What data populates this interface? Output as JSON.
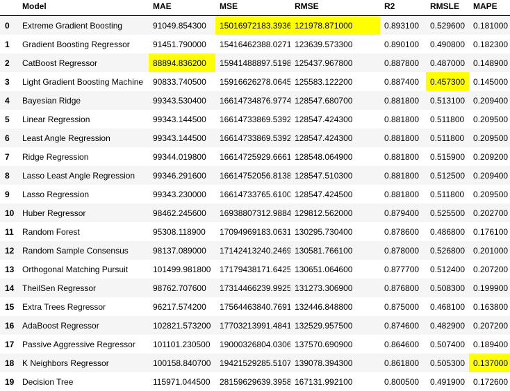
{
  "headers": [
    "",
    "Model",
    "MAE",
    "MSE",
    "RMSE",
    "R2",
    "RMSLE",
    "MAPE"
  ],
  "highlight_color": "#ffff00",
  "rows": [
    {
      "index": "0",
      "cells": [
        "Extreme Gradient Boosting",
        "91049.854300",
        "15016972183.393600",
        "121978.871000",
        "0.893100",
        "0.529600",
        "0.181000"
      ],
      "highlight": [
        2,
        3
      ]
    },
    {
      "index": "1",
      "cells": [
        "Gradient Boosting Regressor",
        "91451.790000",
        "15416462388.027100",
        "123639.573300",
        "0.890100",
        "0.490800",
        "0.182300"
      ],
      "highlight": []
    },
    {
      "index": "2",
      "cells": [
        "CatBoost Regressor",
        "88894.836200",
        "15941488897.519899",
        "125437.967800",
        "0.887800",
        "0.487000",
        "0.148900"
      ],
      "highlight": [
        1
      ]
    },
    {
      "index": "3",
      "cells": [
        "Light Gradient Boosting Machine",
        "90833.740500",
        "15916626278.064501",
        "125583.122200",
        "0.887400",
        "0.457300",
        "0.145000"
      ],
      "highlight": [
        5
      ]
    },
    {
      "index": "4",
      "cells": [
        "Bayesian Ridge",
        "99343.530400",
        "16614734876.977400",
        "128547.680700",
        "0.881800",
        "0.513100",
        "0.209400"
      ],
      "highlight": []
    },
    {
      "index": "5",
      "cells": [
        "Linear Regression",
        "99343.144500",
        "16614733869.539200",
        "128547.424300",
        "0.881800",
        "0.511800",
        "0.209500"
      ],
      "highlight": []
    },
    {
      "index": "6",
      "cells": [
        "Least Angle Regression",
        "99343.144500",
        "16614733869.539200",
        "128547.424300",
        "0.881800",
        "0.511800",
        "0.209500"
      ],
      "highlight": []
    },
    {
      "index": "7",
      "cells": [
        "Ridge Regression",
        "99344.019800",
        "16614725929.666100",
        "128548.064900",
        "0.881800",
        "0.515900",
        "0.209200"
      ],
      "highlight": []
    },
    {
      "index": "8",
      "cells": [
        "Lasso Least Angle Regression",
        "99346.291600",
        "16614752056.813801",
        "128547.510300",
        "0.881800",
        "0.512500",
        "0.209400"
      ],
      "highlight": []
    },
    {
      "index": "9",
      "cells": [
        "Lasso Regression",
        "99343.230000",
        "16614733765.610001",
        "128547.424500",
        "0.881800",
        "0.511800",
        "0.209500"
      ],
      "highlight": []
    },
    {
      "index": "10",
      "cells": [
        "Huber Regressor",
        "98462.245600",
        "16938807312.988400",
        "129812.562000",
        "0.879400",
        "0.525500",
        "0.202700"
      ],
      "highlight": []
    },
    {
      "index": "11",
      "cells": [
        "Random Forest",
        "95308.118900",
        "17094969183.063101",
        "130295.730400",
        "0.878600",
        "0.486800",
        "0.176100"
      ],
      "highlight": []
    },
    {
      "index": "12",
      "cells": [
        "Random Sample Consensus",
        "98137.089000",
        "17142413240.246901",
        "130581.766100",
        "0.878000",
        "0.526800",
        "0.201000"
      ],
      "highlight": []
    },
    {
      "index": "13",
      "cells": [
        "Orthogonal Matching Pursuit",
        "101499.981800",
        "17179438171.642500",
        "130651.064600",
        "0.877700",
        "0.512400",
        "0.207200"
      ],
      "highlight": []
    },
    {
      "index": "14",
      "cells": [
        "TheilSen Regressor",
        "98762.707600",
        "17314466239.992599",
        "131273.306900",
        "0.876800",
        "0.508300",
        "0.199900"
      ],
      "highlight": []
    },
    {
      "index": "15",
      "cells": [
        "Extra Trees Regressor",
        "96217.574200",
        "17564463840.769199",
        "132446.848800",
        "0.875000",
        "0.468100",
        "0.163800"
      ],
      "highlight": []
    },
    {
      "index": "16",
      "cells": [
        "AdaBoost Regressor",
        "102821.573200",
        "17703213991.484100",
        "132529.957500",
        "0.874600",
        "0.482900",
        "0.207200"
      ],
      "highlight": []
    },
    {
      "index": "17",
      "cells": [
        "Passive Aggressive Regressor",
        "101101.230500",
        "19000326804.030602",
        "137570.690900",
        "0.864600",
        "0.507400",
        "0.189400"
      ],
      "highlight": []
    },
    {
      "index": "18",
      "cells": [
        "K Neighbors Regressor",
        "100158.840700",
        "19421529285.510700",
        "139078.394300",
        "0.861800",
        "0.505300",
        "0.137000"
      ],
      "highlight": [
        6
      ]
    },
    {
      "index": "19",
      "cells": [
        "Decision Tree",
        "115971.044500",
        "28159629639.395802",
        "167131.992100",
        "0.800500",
        "0.491900",
        "0.172600"
      ],
      "highlight": []
    }
  ]
}
